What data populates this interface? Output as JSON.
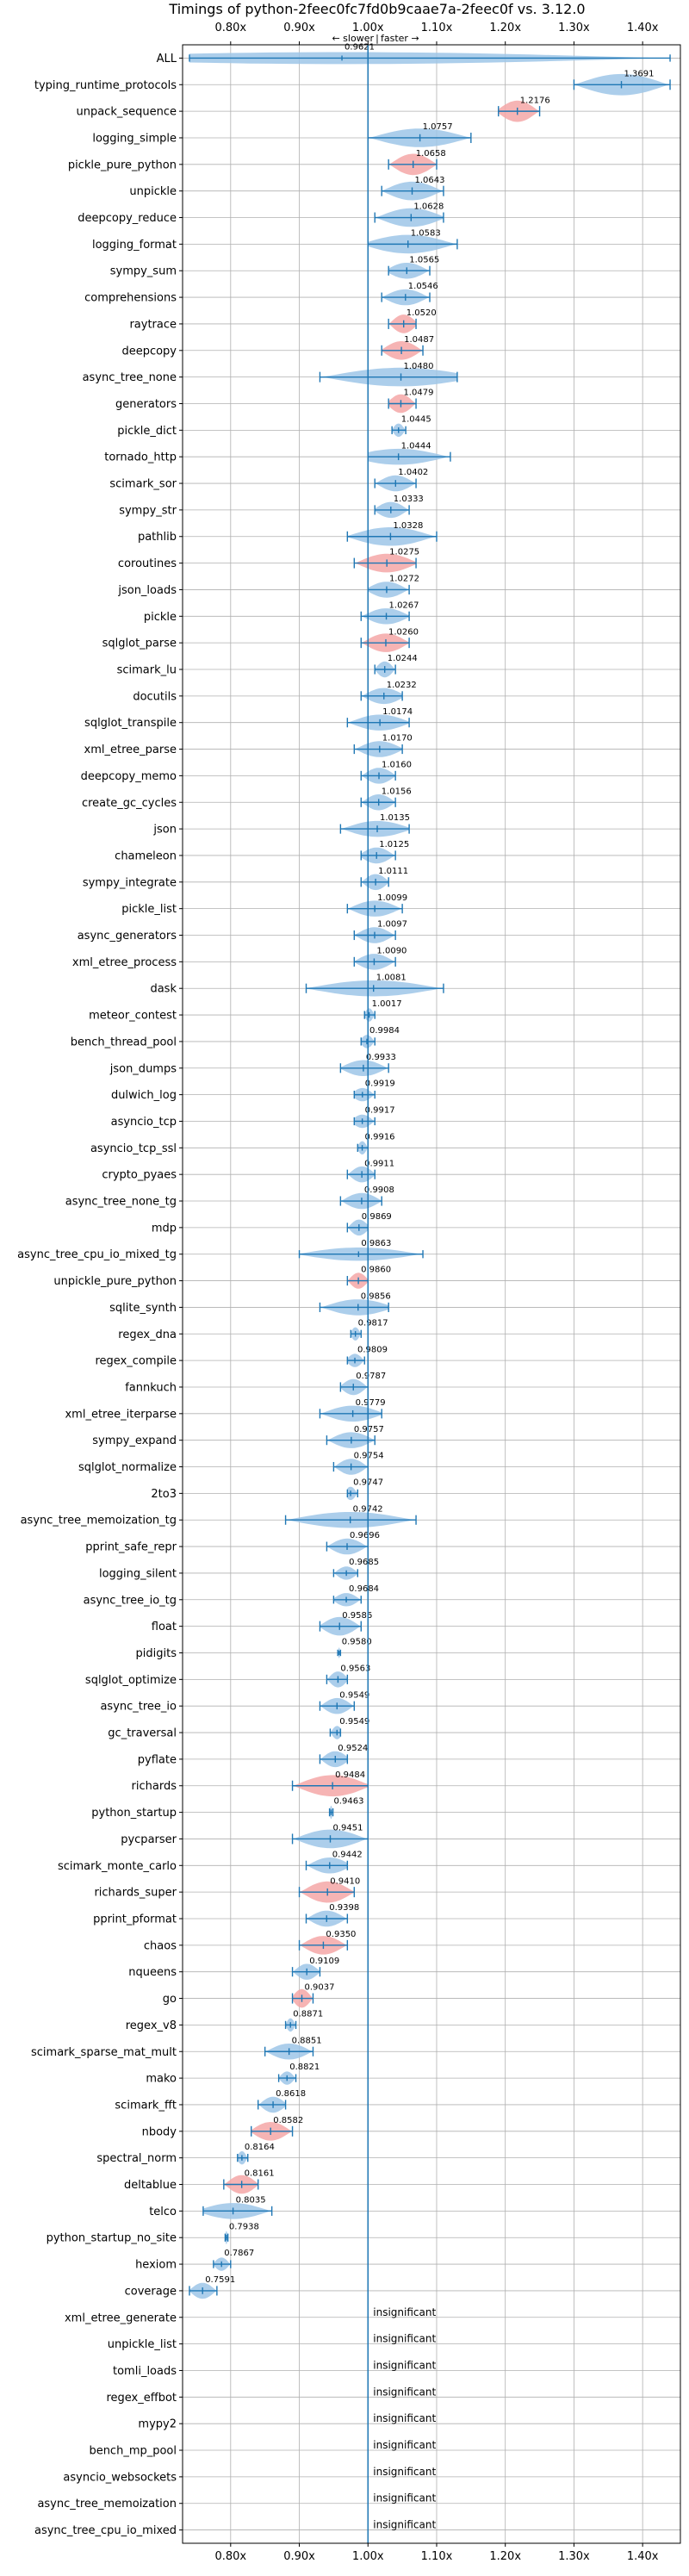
{
  "chart_data": {
    "type": "violin",
    "title": "Timings of python-2feec0fc7fd0b9caae7a-2feec0f vs. 3.12.0",
    "direction_labels": {
      "slower": "← slower",
      "separator": "|",
      "faster": "faster →"
    },
    "x_ticks": [
      0.8,
      0.9,
      1.0,
      1.1,
      1.2,
      1.3,
      1.4
    ],
    "x_tick_labels": [
      "0.80x",
      "0.90x",
      "1.00x",
      "1.10x",
      "1.20x",
      "1.30x",
      "1.40x"
    ],
    "xlim": [
      0.73,
      1.455
    ],
    "reference_x": 1.0,
    "grid": true,
    "insignificant_label": "insignificant",
    "colors": {
      "faster": "#9ec6e8",
      "slower": "#f4a7a7",
      "axis_line": "#1f77b4",
      "grid": "#b0b0b0"
    },
    "benchmarks": [
      {
        "name": "ALL",
        "value": 0.9621,
        "lo": 0.74,
        "hi": 1.44,
        "kind": "faster",
        "w": 0.45
      },
      {
        "name": "typing_runtime_protocols",
        "value": 1.3691,
        "lo": 1.3,
        "hi": 1.44,
        "kind": "faster",
        "w": 0.8
      },
      {
        "name": "unpack_sequence",
        "value": 1.2176,
        "lo": 1.19,
        "hi": 1.25,
        "kind": "slower",
        "w": 0.8
      },
      {
        "name": "logging_simple",
        "value": 1.0757,
        "lo": 1.0,
        "hi": 1.15,
        "kind": "faster",
        "w": 0.7
      },
      {
        "name": "pickle_pure_python",
        "value": 1.0658,
        "lo": 1.03,
        "hi": 1.1,
        "kind": "slower",
        "w": 0.8
      },
      {
        "name": "unpickle",
        "value": 1.0643,
        "lo": 1.02,
        "hi": 1.11,
        "kind": "faster",
        "w": 0.7
      },
      {
        "name": "deepcopy_reduce",
        "value": 1.0628,
        "lo": 1.01,
        "hi": 1.11,
        "kind": "faster",
        "w": 0.7
      },
      {
        "name": "logging_format",
        "value": 1.0583,
        "lo": 1.0,
        "hi": 1.13,
        "kind": "faster",
        "w": 0.7
      },
      {
        "name": "sympy_sum",
        "value": 1.0565,
        "lo": 1.03,
        "hi": 1.09,
        "kind": "faster",
        "w": 0.6
      },
      {
        "name": "comprehensions",
        "value": 1.0546,
        "lo": 1.02,
        "hi": 1.09,
        "kind": "faster",
        "w": 0.6
      },
      {
        "name": "raytrace",
        "value": 1.052,
        "lo": 1.03,
        "hi": 1.07,
        "kind": "slower",
        "w": 0.7
      },
      {
        "name": "deepcopy",
        "value": 1.0487,
        "lo": 1.02,
        "hi": 1.08,
        "kind": "slower",
        "w": 0.7
      },
      {
        "name": "async_tree_none",
        "value": 1.048,
        "lo": 0.93,
        "hi": 1.13,
        "kind": "faster",
        "w": 0.7
      },
      {
        "name": "generators",
        "value": 1.0479,
        "lo": 1.03,
        "hi": 1.07,
        "kind": "slower",
        "w": 0.7
      },
      {
        "name": "pickle_dict",
        "value": 1.0445,
        "lo": 1.035,
        "hi": 1.055,
        "kind": "faster",
        "w": 0.5
      },
      {
        "name": "tornado_http",
        "value": 1.0444,
        "lo": 1.0,
        "hi": 1.12,
        "kind": "faster",
        "w": 0.6
      },
      {
        "name": "scimark_sor",
        "value": 1.0402,
        "lo": 1.01,
        "hi": 1.07,
        "kind": "faster",
        "w": 0.6
      },
      {
        "name": "sympy_str",
        "value": 1.0333,
        "lo": 1.01,
        "hi": 1.06,
        "kind": "faster",
        "w": 0.6
      },
      {
        "name": "pathlib",
        "value": 1.0328,
        "lo": 0.97,
        "hi": 1.1,
        "kind": "faster",
        "w": 0.7
      },
      {
        "name": "coroutines",
        "value": 1.0275,
        "lo": 0.98,
        "hi": 1.07,
        "kind": "slower",
        "w": 0.7
      },
      {
        "name": "json_loads",
        "value": 1.0272,
        "lo": 1.0,
        "hi": 1.06,
        "kind": "faster",
        "w": 0.6
      },
      {
        "name": "pickle",
        "value": 1.0267,
        "lo": 0.99,
        "hi": 1.06,
        "kind": "faster",
        "w": 0.6
      },
      {
        "name": "sqlglot_parse",
        "value": 1.026,
        "lo": 0.99,
        "hi": 1.06,
        "kind": "slower",
        "w": 0.7
      },
      {
        "name": "scimark_lu",
        "value": 1.0244,
        "lo": 1.01,
        "hi": 1.04,
        "kind": "faster",
        "w": 0.6
      },
      {
        "name": "docutils",
        "value": 1.0232,
        "lo": 0.99,
        "hi": 1.05,
        "kind": "faster",
        "w": 0.6
      },
      {
        "name": "sqlglot_transpile",
        "value": 1.0174,
        "lo": 0.97,
        "hi": 1.06,
        "kind": "faster",
        "w": 0.6
      },
      {
        "name": "xml_etree_parse",
        "value": 1.017,
        "lo": 0.98,
        "hi": 1.05,
        "kind": "faster",
        "w": 0.6
      },
      {
        "name": "deepcopy_memo",
        "value": 1.016,
        "lo": 0.99,
        "hi": 1.04,
        "kind": "faster",
        "w": 0.6
      },
      {
        "name": "create_gc_cycles",
        "value": 1.0156,
        "lo": 0.99,
        "hi": 1.04,
        "kind": "faster",
        "w": 0.6
      },
      {
        "name": "json",
        "value": 1.0135,
        "lo": 0.96,
        "hi": 1.06,
        "kind": "faster",
        "w": 0.6
      },
      {
        "name": "chameleon",
        "value": 1.0125,
        "lo": 0.99,
        "hi": 1.04,
        "kind": "faster",
        "w": 0.6
      },
      {
        "name": "sympy_integrate",
        "value": 1.0111,
        "lo": 0.99,
        "hi": 1.03,
        "kind": "faster",
        "w": 0.6
      },
      {
        "name": "pickle_list",
        "value": 1.0099,
        "lo": 0.97,
        "hi": 1.05,
        "kind": "faster",
        "w": 0.6
      },
      {
        "name": "async_generators",
        "value": 1.0097,
        "lo": 0.98,
        "hi": 1.04,
        "kind": "faster",
        "w": 0.6
      },
      {
        "name": "xml_etree_process",
        "value": 1.009,
        "lo": 0.98,
        "hi": 1.04,
        "kind": "faster",
        "w": 0.6
      },
      {
        "name": "dask",
        "value": 1.0081,
        "lo": 0.91,
        "hi": 1.11,
        "kind": "faster",
        "w": 0.6
      },
      {
        "name": "meteor_contest",
        "value": 1.0017,
        "lo": 0.995,
        "hi": 1.01,
        "kind": "faster",
        "w": 0.5
      },
      {
        "name": "bench_thread_pool",
        "value": 0.9984,
        "lo": 0.99,
        "hi": 1.01,
        "kind": "faster",
        "w": 0.5
      },
      {
        "name": "json_dumps",
        "value": 0.9933,
        "lo": 0.96,
        "hi": 1.03,
        "kind": "faster",
        "w": 0.6
      },
      {
        "name": "dulwich_log",
        "value": 0.9919,
        "lo": 0.98,
        "hi": 1.01,
        "kind": "faster",
        "w": 0.5
      },
      {
        "name": "asyncio_tcp",
        "value": 0.9917,
        "lo": 0.98,
        "hi": 1.01,
        "kind": "faster",
        "w": 0.5
      },
      {
        "name": "asyncio_tcp_ssl",
        "value": 0.9916,
        "lo": 0.985,
        "hi": 1.0,
        "kind": "faster",
        "w": 0.5
      },
      {
        "name": "crypto_pyaes",
        "value": 0.9911,
        "lo": 0.97,
        "hi": 1.01,
        "kind": "faster",
        "w": 0.6
      },
      {
        "name": "async_tree_none_tg",
        "value": 0.9908,
        "lo": 0.96,
        "hi": 1.02,
        "kind": "faster",
        "w": 0.6
      },
      {
        "name": "mdp",
        "value": 0.9869,
        "lo": 0.97,
        "hi": 1.0,
        "kind": "faster",
        "w": 0.6
      },
      {
        "name": "async_tree_cpu_io_mixed_tg",
        "value": 0.9863,
        "lo": 0.9,
        "hi": 1.08,
        "kind": "faster",
        "w": 0.5
      },
      {
        "name": "unpickle_pure_python",
        "value": 0.986,
        "lo": 0.97,
        "hi": 1.0,
        "kind": "slower",
        "w": 0.6
      },
      {
        "name": "sqlite_synth",
        "value": 0.9856,
        "lo": 0.93,
        "hi": 1.03,
        "kind": "faster",
        "w": 0.6
      },
      {
        "name": "regex_dna",
        "value": 0.9817,
        "lo": 0.975,
        "hi": 0.99,
        "kind": "faster",
        "w": 0.5
      },
      {
        "name": "regex_compile",
        "value": 0.9809,
        "lo": 0.97,
        "hi": 0.995,
        "kind": "faster",
        "w": 0.5
      },
      {
        "name": "fannkuch",
        "value": 0.9787,
        "lo": 0.96,
        "hi": 1.0,
        "kind": "faster",
        "w": 0.6
      },
      {
        "name": "xml_etree_iterparse",
        "value": 0.9779,
        "lo": 0.93,
        "hi": 1.02,
        "kind": "faster",
        "w": 0.6
      },
      {
        "name": "sympy_expand",
        "value": 0.9757,
        "lo": 0.94,
        "hi": 1.01,
        "kind": "faster",
        "w": 0.6
      },
      {
        "name": "sqlglot_normalize",
        "value": 0.9754,
        "lo": 0.95,
        "hi": 1.0,
        "kind": "faster",
        "w": 0.6
      },
      {
        "name": "2to3",
        "value": 0.9747,
        "lo": 0.97,
        "hi": 0.985,
        "kind": "faster",
        "w": 0.5
      },
      {
        "name": "async_tree_memoization_tg",
        "value": 0.9742,
        "lo": 0.88,
        "hi": 1.07,
        "kind": "faster",
        "w": 0.6
      },
      {
        "name": "pprint_safe_repr",
        "value": 0.9696,
        "lo": 0.94,
        "hi": 1.0,
        "kind": "faster",
        "w": 0.6
      },
      {
        "name": "logging_silent",
        "value": 0.9685,
        "lo": 0.95,
        "hi": 0.985,
        "kind": "faster",
        "w": 0.5
      },
      {
        "name": "async_tree_io_tg",
        "value": 0.9684,
        "lo": 0.95,
        "hi": 0.99,
        "kind": "faster",
        "w": 0.5
      },
      {
        "name": "float",
        "value": 0.9586,
        "lo": 0.93,
        "hi": 0.99,
        "kind": "faster",
        "w": 0.7
      },
      {
        "name": "pidigits",
        "value": 0.958,
        "lo": 0.956,
        "hi": 0.96,
        "kind": "faster",
        "w": 0.4
      },
      {
        "name": "sqlglot_optimize",
        "value": 0.9563,
        "lo": 0.94,
        "hi": 0.97,
        "kind": "faster",
        "w": 0.6
      },
      {
        "name": "async_tree_io",
        "value": 0.9549,
        "lo": 0.93,
        "hi": 0.98,
        "kind": "faster",
        "w": 0.6
      },
      {
        "name": "gc_traversal",
        "value": 0.9549,
        "lo": 0.945,
        "hi": 0.96,
        "kind": "faster",
        "w": 0.5
      },
      {
        "name": "pyflate",
        "value": 0.9524,
        "lo": 0.93,
        "hi": 0.97,
        "kind": "faster",
        "w": 0.6
      },
      {
        "name": "richards",
        "value": 0.9484,
        "lo": 0.89,
        "hi": 1.0,
        "kind": "slower",
        "w": 0.8
      },
      {
        "name": "python_startup",
        "value": 0.9463,
        "lo": 0.944,
        "hi": 0.949,
        "kind": "faster",
        "w": 0.5
      },
      {
        "name": "pycparser",
        "value": 0.9451,
        "lo": 0.89,
        "hi": 1.0,
        "kind": "faster",
        "w": 0.7
      },
      {
        "name": "scimark_monte_carlo",
        "value": 0.9442,
        "lo": 0.91,
        "hi": 0.97,
        "kind": "faster",
        "w": 0.6
      },
      {
        "name": "richards_super",
        "value": 0.941,
        "lo": 0.9,
        "hi": 0.98,
        "kind": "slower",
        "w": 0.8
      },
      {
        "name": "pprint_pformat",
        "value": 0.9398,
        "lo": 0.91,
        "hi": 0.97,
        "kind": "faster",
        "w": 0.6
      },
      {
        "name": "chaos",
        "value": 0.935,
        "lo": 0.9,
        "hi": 0.97,
        "kind": "slower",
        "w": 0.7
      },
      {
        "name": "nqueens",
        "value": 0.9109,
        "lo": 0.89,
        "hi": 0.93,
        "kind": "faster",
        "w": 0.6
      },
      {
        "name": "go",
        "value": 0.9037,
        "lo": 0.89,
        "hi": 0.92,
        "kind": "slower",
        "w": 0.7
      },
      {
        "name": "regex_v8",
        "value": 0.8871,
        "lo": 0.88,
        "hi": 0.895,
        "kind": "faster",
        "w": 0.5
      },
      {
        "name": "scimark_sparse_mat_mult",
        "value": 0.8851,
        "lo": 0.85,
        "hi": 0.92,
        "kind": "faster",
        "w": 0.6
      },
      {
        "name": "mako",
        "value": 0.8821,
        "lo": 0.87,
        "hi": 0.895,
        "kind": "faster",
        "w": 0.5
      },
      {
        "name": "scimark_fft",
        "value": 0.8618,
        "lo": 0.84,
        "hi": 0.88,
        "kind": "faster",
        "w": 0.6
      },
      {
        "name": "nbody",
        "value": 0.8582,
        "lo": 0.83,
        "hi": 0.89,
        "kind": "slower",
        "w": 0.7
      },
      {
        "name": "spectral_norm",
        "value": 0.8164,
        "lo": 0.81,
        "hi": 0.825,
        "kind": "faster",
        "w": 0.5
      },
      {
        "name": "deltablue",
        "value": 0.8161,
        "lo": 0.79,
        "hi": 0.84,
        "kind": "slower",
        "w": 0.7
      },
      {
        "name": "telco",
        "value": 0.8035,
        "lo": 0.76,
        "hi": 0.86,
        "kind": "faster",
        "w": 0.6
      },
      {
        "name": "python_startup_no_site",
        "value": 0.7938,
        "lo": 0.792,
        "hi": 0.796,
        "kind": "faster",
        "w": 0.5
      },
      {
        "name": "hexiom",
        "value": 0.7867,
        "lo": 0.775,
        "hi": 0.8,
        "kind": "faster",
        "w": 0.5
      },
      {
        "name": "coverage",
        "value": 0.7591,
        "lo": 0.74,
        "hi": 0.78,
        "kind": "faster",
        "w": 0.6
      },
      {
        "name": "xml_etree_generate",
        "value": null,
        "kind": "insignificant"
      },
      {
        "name": "unpickle_list",
        "value": null,
        "kind": "insignificant"
      },
      {
        "name": "tomli_loads",
        "value": null,
        "kind": "insignificant"
      },
      {
        "name": "regex_effbot",
        "value": null,
        "kind": "insignificant"
      },
      {
        "name": "mypy2",
        "value": null,
        "kind": "insignificant"
      },
      {
        "name": "bench_mp_pool",
        "value": null,
        "kind": "insignificant"
      },
      {
        "name": "asyncio_websockets",
        "value": null,
        "kind": "insignificant"
      },
      {
        "name": "async_tree_memoization",
        "value": null,
        "kind": "insignificant"
      },
      {
        "name": "async_tree_cpu_io_mixed",
        "value": null,
        "kind": "insignificant"
      }
    ]
  }
}
